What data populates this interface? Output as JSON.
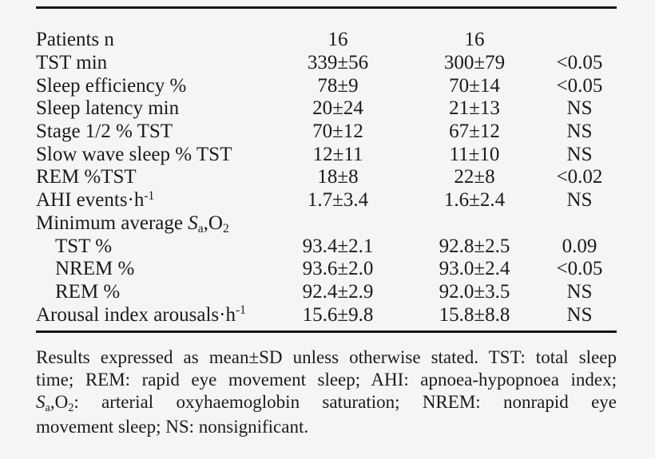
{
  "page": {
    "background_color": "#f5f5f6",
    "text_color": "#1b1b1b",
    "rule_color": "#161616"
  },
  "table": {
    "rows": [
      {
        "indent": false,
        "label": [
          {
            "t": "Patients n"
          }
        ],
        "values": [
          "16",
          "16",
          ""
        ]
      },
      {
        "indent": false,
        "label": [
          {
            "t": "TST min"
          }
        ],
        "values": [
          "339±56",
          "300±79",
          "<0.05"
        ]
      },
      {
        "indent": false,
        "label": [
          {
            "t": "Sleep efficiency %"
          }
        ],
        "values": [
          "78±9",
          "70±14",
          "<0.05"
        ]
      },
      {
        "indent": false,
        "label": [
          {
            "t": "Sleep latency min"
          }
        ],
        "values": [
          "20±24",
          "21±13",
          "NS"
        ]
      },
      {
        "indent": false,
        "label": [
          {
            "t": "Stage 1/2 % TST"
          }
        ],
        "values": [
          "70±12",
          "67±12",
          "NS"
        ]
      },
      {
        "indent": false,
        "label": [
          {
            "t": "Slow wave sleep % TST"
          }
        ],
        "values": [
          "12±11",
          "11±10",
          "NS"
        ]
      },
      {
        "indent": false,
        "label": [
          {
            "t": "REM %TST"
          }
        ],
        "values": [
          "18±8",
          "22±8",
          "<0.02"
        ]
      },
      {
        "indent": false,
        "label": [
          {
            "t": "AHI events·h"
          },
          {
            "t": "-1",
            "style": "sup"
          }
        ],
        "values": [
          "1.7±3.4",
          "1.6±2.4",
          "NS"
        ]
      },
      {
        "indent": false,
        "label": [
          {
            "t": "Minimum average "
          },
          {
            "t": "S",
            "style": "italic"
          },
          {
            "t": "a",
            "style": "sub"
          },
          {
            "t": ",O"
          },
          {
            "t": "2",
            "style": "sub"
          }
        ],
        "values": [
          "",
          "",
          ""
        ]
      },
      {
        "indent": true,
        "label": [
          {
            "t": "TST %"
          }
        ],
        "values": [
          "93.4±2.1",
          "92.8±2.5",
          "0.09"
        ]
      },
      {
        "indent": true,
        "label": [
          {
            "t": "NREM %"
          }
        ],
        "values": [
          "93.6±2.0",
          "93.0±2.4",
          "<0.05"
        ]
      },
      {
        "indent": true,
        "label": [
          {
            "t": "REM %"
          }
        ],
        "values": [
          "92.4±2.9",
          "92.0±3.5",
          "NS"
        ]
      },
      {
        "indent": false,
        "label": [
          {
            "t": "Arousal index arousals·h"
          },
          {
            "t": "-1",
            "style": "sup"
          }
        ],
        "values": [
          "15.6±9.8",
          "15.8±8.8",
          "NS"
        ]
      }
    ]
  },
  "footnote": {
    "lines": [
      {
        "justify": true,
        "segments": [
          {
            "t": "Results expressed as mean±SD unless otherwise stated. TST: total sleep"
          }
        ]
      },
      {
        "justify": true,
        "segments": [
          {
            "t": "time; REM: rapid eye movement sleep; AHI: apnoea-hypopnoea index;"
          }
        ]
      },
      {
        "justify": true,
        "segments": [
          {
            "t": "S",
            "style": "italic"
          },
          {
            "t": "a",
            "style": "sub"
          },
          {
            "t": ",O"
          },
          {
            "t": "2",
            "style": "sub"
          },
          {
            "t": ": arterial oxyhaemoglobin saturation; NREM: nonrapid eye"
          }
        ]
      },
      {
        "justify": false,
        "segments": [
          {
            "t": "movement sleep; NS: nonsignificant."
          }
        ]
      }
    ]
  }
}
